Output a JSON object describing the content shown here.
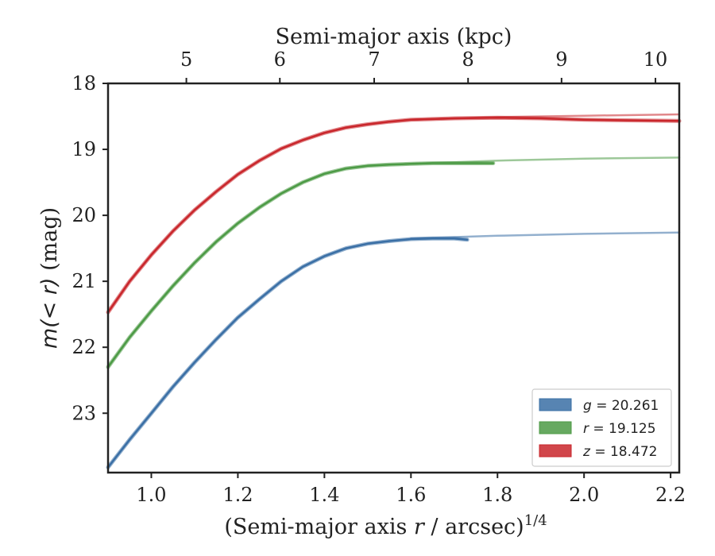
{
  "chart_data": {
    "type": "line",
    "xlabel": "(Semi-major axis r / arcsec)^{1/4}",
    "xlabel_parts": {
      "pre": "(Semi-major axis ",
      "var": "r",
      "mid": " / arcsec)",
      "sup": "1/4"
    },
    "ylabel": "m(< r) (mag)",
    "ylabel_parts": {
      "var": "m(< r)",
      "unit": " (mag)"
    },
    "top_xlabel": "Semi-major axis (kpc)",
    "xlim": [
      0.9,
      2.22
    ],
    "ylim": [
      18.0,
      23.9
    ],
    "y_inverted": true,
    "x_ticks": [
      "1.0",
      "1.2",
      "1.4",
      "1.6",
      "1.8",
      "2.0",
      "2.2"
    ],
    "y_ticks": [
      "18",
      "19",
      "20",
      "21",
      "22",
      "23"
    ],
    "top_ticks": [
      "5",
      "6",
      "7",
      "8",
      "9",
      "10"
    ],
    "top_tick_positions": [
      1.081,
      1.297,
      1.515,
      1.732,
      1.948,
      2.165
    ],
    "legend": {
      "placement": "lower-right",
      "entries": [
        {
          "label": "g = 20.261",
          "var": "g",
          "val": " = 20.261",
          "color": "#3a6fa5"
        },
        {
          "label": "r = 19.125",
          "var": "r",
          "val": " = 19.125",
          "color": "#4c9a45"
        },
        {
          "label": "z = 18.472",
          "var": "z",
          "val": " = 18.472",
          "color": "#c9262b"
        }
      ]
    },
    "series": [
      {
        "color": "#3a6fa5",
        "x": [
          0.9,
          0.95,
          1.0,
          1.05,
          1.1,
          1.15,
          1.2,
          1.25,
          1.3,
          1.35,
          1.4,
          1.45,
          1.5,
          1.55,
          1.6,
          1.65,
          1.7,
          1.73
        ],
        "y": [
          23.82,
          23.4,
          23.0,
          22.6,
          22.23,
          21.88,
          21.55,
          21.27,
          21.0,
          20.78,
          20.62,
          20.5,
          20.43,
          20.39,
          20.36,
          20.35,
          20.35,
          20.37
        ],
        "ext_x": [
          1.6,
          1.8,
          2.0,
          2.22
        ],
        "ext_y": [
          20.35,
          20.31,
          20.28,
          20.26
        ]
      },
      {
        "color": "#4c9a45",
        "x": [
          0.9,
          0.95,
          1.0,
          1.05,
          1.1,
          1.15,
          1.2,
          1.25,
          1.3,
          1.35,
          1.4,
          1.45,
          1.5,
          1.55,
          1.6,
          1.65,
          1.7,
          1.75,
          1.79
        ],
        "y": [
          22.3,
          21.85,
          21.45,
          21.07,
          20.72,
          20.4,
          20.12,
          19.88,
          19.67,
          19.5,
          19.37,
          19.29,
          19.25,
          19.23,
          19.22,
          19.21,
          19.21,
          19.21,
          19.21
        ],
        "ext_x": [
          1.6,
          1.8,
          2.0,
          2.22
        ],
        "ext_y": [
          19.22,
          19.17,
          19.14,
          19.125
        ]
      },
      {
        "color": "#c9262b",
        "x": [
          0.9,
          0.95,
          1.0,
          1.05,
          1.1,
          1.15,
          1.2,
          1.25,
          1.3,
          1.35,
          1.4,
          1.45,
          1.5,
          1.55,
          1.6,
          1.7,
          1.8,
          1.9,
          2.0,
          2.1,
          2.22
        ],
        "y": [
          21.47,
          21.0,
          20.6,
          20.24,
          19.92,
          19.64,
          19.38,
          19.17,
          18.99,
          18.86,
          18.75,
          18.67,
          18.62,
          18.58,
          18.55,
          18.53,
          18.52,
          18.53,
          18.55,
          18.56,
          18.57
        ],
        "ext_x": [
          1.6,
          1.8,
          2.0,
          2.22
        ],
        "ext_y": [
          18.55,
          18.51,
          18.49,
          18.47
        ]
      }
    ]
  }
}
